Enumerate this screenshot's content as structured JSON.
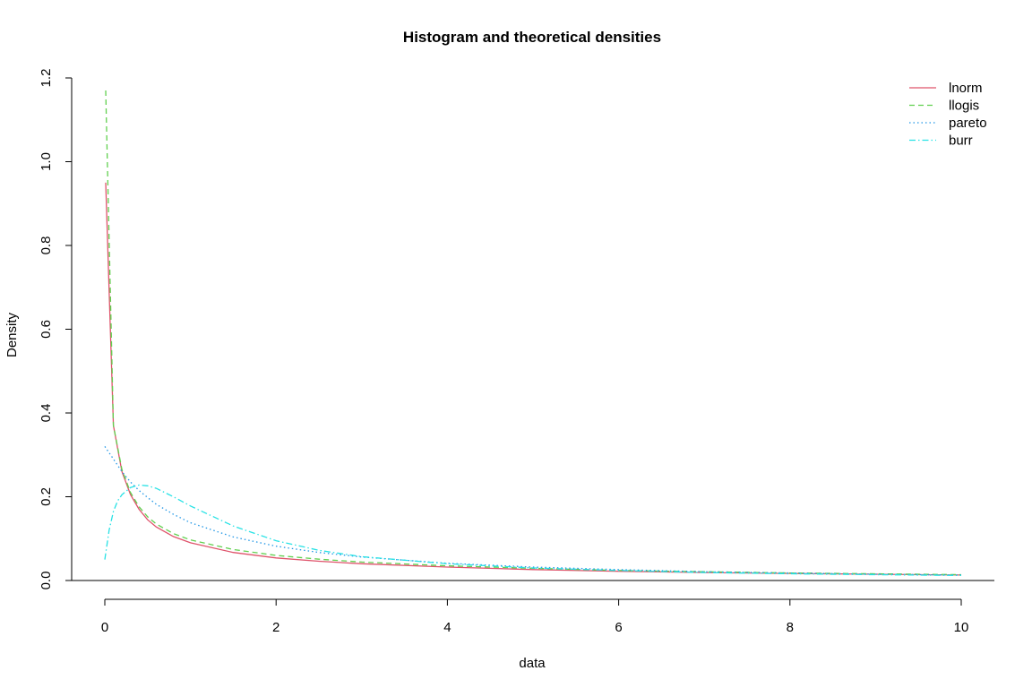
{
  "chart_data": {
    "type": "line",
    "title": "Histogram and theoretical densities",
    "xlabel": "data",
    "ylabel": "Density",
    "xlim": [
      0,
      10
    ],
    "ylim": [
      0,
      1.2
    ],
    "xticks": [
      0,
      2,
      4,
      6,
      8,
      10
    ],
    "yticks": [
      0,
      0.2,
      0.4,
      0.6,
      0.8,
      1.0,
      1.2
    ],
    "ytick_labels": [
      "0.0",
      "0.2",
      "0.4",
      "0.6",
      "0.8",
      "1.0",
      "1.2"
    ],
    "grid": false,
    "legend_position": "top-right",
    "baseline": 0,
    "series": [
      {
        "name": "lnorm",
        "color": "#DF536B",
        "dash": "solid",
        "x": [
          0.01,
          0.1,
          0.2,
          0.3,
          0.4,
          0.5,
          0.6,
          0.8,
          1.0,
          1.5,
          2.0,
          2.5,
          3.0,
          4.0,
          5.0,
          6.0,
          7.0,
          8.0,
          9.0,
          10.0
        ],
        "y": [
          0.95,
          0.37,
          0.26,
          0.205,
          0.17,
          0.145,
          0.128,
          0.105,
          0.09,
          0.067,
          0.054,
          0.046,
          0.04,
          0.032,
          0.026,
          0.022,
          0.019,
          0.017,
          0.015,
          0.013
        ]
      },
      {
        "name": "llogis",
        "color": "#61D04F",
        "dash": "dashed",
        "x": [
          0.01,
          0.1,
          0.2,
          0.3,
          0.4,
          0.5,
          0.6,
          0.8,
          1.0,
          1.5,
          2.0,
          2.5,
          3.0,
          4.0,
          5.0,
          6.0,
          7.0,
          8.0,
          9.0,
          10.0
        ],
        "y": [
          1.17,
          0.37,
          0.265,
          0.21,
          0.176,
          0.152,
          0.135,
          0.112,
          0.097,
          0.074,
          0.06,
          0.051,
          0.044,
          0.035,
          0.029,
          0.024,
          0.021,
          0.018,
          0.016,
          0.014
        ]
      },
      {
        "name": "pareto",
        "color": "#2297E6",
        "dash": "dotted",
        "x": [
          0.0,
          0.1,
          0.2,
          0.3,
          0.4,
          0.5,
          0.6,
          0.8,
          1.0,
          1.5,
          2.0,
          2.5,
          3.0,
          4.0,
          5.0,
          6.0,
          7.0,
          8.0,
          9.0,
          10.0
        ],
        "y": [
          0.32,
          0.29,
          0.26,
          0.235,
          0.215,
          0.198,
          0.182,
          0.158,
          0.138,
          0.104,
          0.082,
          0.067,
          0.056,
          0.041,
          0.032,
          0.026,
          0.021,
          0.018,
          0.015,
          0.013
        ]
      },
      {
        "name": "burr",
        "color": "#28E2E5",
        "dash": "dashdot",
        "x": [
          0.0,
          0.05,
          0.1,
          0.15,
          0.2,
          0.3,
          0.4,
          0.5,
          0.6,
          0.8,
          1.0,
          1.5,
          2.0,
          2.5,
          3.0,
          4.0,
          5.0,
          6.0,
          7.0,
          8.0,
          9.0,
          10.0
        ],
        "y": [
          0.05,
          0.12,
          0.165,
          0.19,
          0.205,
          0.222,
          0.228,
          0.226,
          0.22,
          0.2,
          0.178,
          0.13,
          0.095,
          0.072,
          0.057,
          0.04,
          0.03,
          0.024,
          0.019,
          0.016,
          0.014,
          0.012
        ]
      }
    ]
  }
}
